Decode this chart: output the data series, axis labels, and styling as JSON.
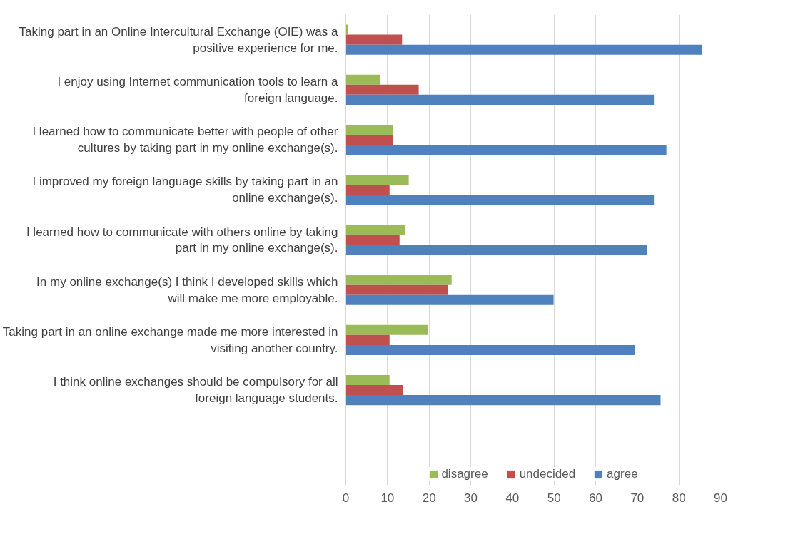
{
  "chart_data": {
    "type": "bar",
    "orientation": "horizontal",
    "categories": [
      "Taking part in an Online Intercultural Exchange (OIE) was a positive experience for me.",
      "I enjoy using Internet communication tools to learn a foreign language.",
      "I learned how to communicate better with people of other cultures by taking part in my online exchange(s).",
      "I improved my foreign language skills by taking part in an online exchange(s).",
      "I learned how to communicate with others online by taking part in my online exchange(s).",
      "In my online exchange(s) I think I developed skills which will make me more employable.",
      "Taking part in an online exchange made me more interested in visiting another country.",
      "I think online exchanges should be compulsory for all foreign language students."
    ],
    "series": [
      {
        "name": "disagree",
        "color": "#9bbb59",
        "values": [
          0.6,
          8.3,
          11.3,
          15.1,
          14.3,
          25.4,
          19.8,
          10.5
        ]
      },
      {
        "name": "undecided",
        "color": "#c0504d",
        "values": [
          13.5,
          17.5,
          11.3,
          10.5,
          12.9,
          24.6,
          10.5,
          13.7
        ]
      },
      {
        "name": "agree",
        "color": "#4f81bd",
        "values": [
          85.6,
          74.0,
          77.0,
          74.0,
          72.4,
          49.9,
          69.4,
          75.6
        ]
      }
    ],
    "xlim": [
      0,
      90
    ],
    "xticks": [
      0,
      10,
      20,
      30,
      40,
      50,
      60,
      70,
      80,
      90
    ],
    "grid": "x",
    "legend": "bottom"
  }
}
